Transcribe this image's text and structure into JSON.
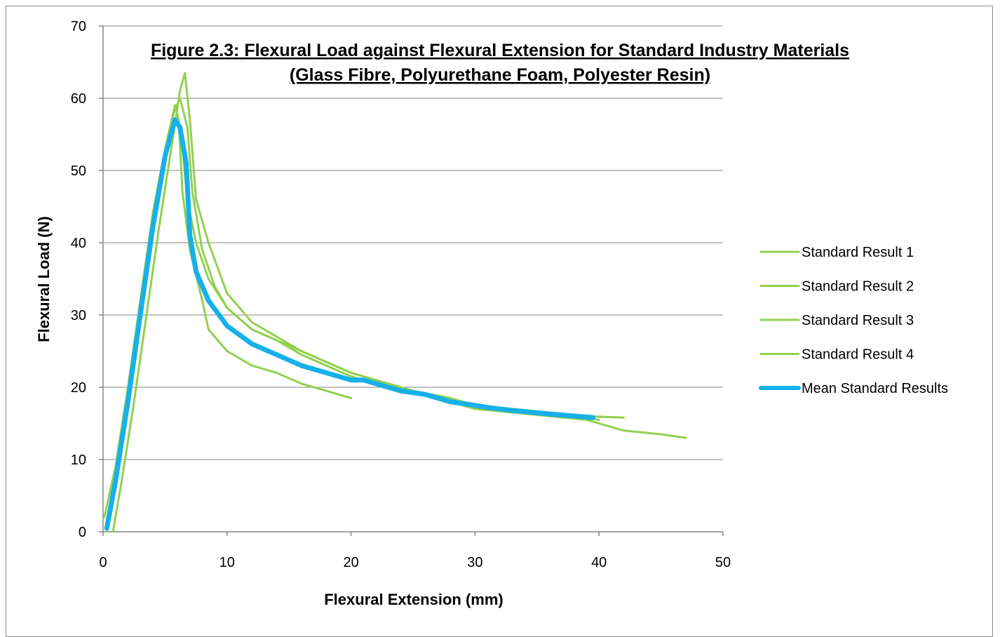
{
  "chart_data": {
    "type": "line",
    "title_line1": "Figure 2.3: Flexural Load against Flexural Extension for Standard Industry Materials",
    "title_line2": "(Glass Fibre, Polyurethane Foam, Polyester Resin)",
    "xlabel": "Flexural Extension (mm)",
    "ylabel": "Flexural Load (N)",
    "xlim": [
      0,
      50
    ],
    "ylim": [
      0,
      70
    ],
    "x_ticks": [
      "0",
      "10",
      "20",
      "30",
      "40",
      "50"
    ],
    "y_ticks": [
      "0",
      "10",
      "20",
      "30",
      "40",
      "50",
      "60",
      "70"
    ],
    "grid": "horizontal",
    "legend_position": "right",
    "series": [
      {
        "name": "Standard Result 1",
        "color": "#92d050",
        "x": [
          0.3,
          1,
          2,
          3,
          4,
          5,
          5.7,
          6.2,
          6.8,
          7.2,
          8,
          9,
          10,
          12,
          14,
          16,
          18,
          20,
          22,
          25,
          28,
          30,
          33,
          36,
          39,
          42
        ],
        "y": [
          0,
          7,
          17,
          29,
          41,
          52,
          58,
          60,
          56,
          47,
          39,
          34,
          31,
          28,
          26.5,
          25,
          23.5,
          22,
          21,
          19.5,
          18.5,
          17.5,
          17,
          16.5,
          16,
          15.8
        ]
      },
      {
        "name": "Standard Result 2",
        "color": "#92d050",
        "x": [
          0.8,
          1.5,
          2.5,
          3.5,
          4.5,
          5.5,
          6.2,
          6.6,
          7,
          7.5,
          8.5,
          10,
          12,
          14,
          16,
          18,
          20,
          22,
          25,
          28,
          30,
          33,
          36,
          39,
          42,
          45,
          47
        ],
        "y": [
          0,
          7,
          18,
          30,
          42,
          53,
          61,
          63.5,
          57,
          46,
          40,
          33,
          29,
          27,
          25,
          23.5,
          22,
          21,
          19.5,
          18,
          17,
          16.5,
          16,
          15.5,
          14,
          13.5,
          13
        ]
      },
      {
        "name": "Standard Result 3",
        "color": "#92d050",
        "x": [
          0.1,
          1,
          2,
          3,
          4,
          5,
          5.8,
          6.1,
          6.4,
          7,
          8,
          8.5,
          10,
          12,
          14,
          16,
          18,
          20
        ],
        "y": [
          2,
          9,
          20,
          32,
          44,
          53,
          59,
          57,
          47,
          39,
          32,
          28,
          25,
          23,
          22,
          20.5,
          19.5,
          18.5
        ]
      },
      {
        "name": "Standard Result 4",
        "color": "#92d050",
        "x": [
          0.2,
          1,
          2,
          3,
          4,
          5,
          5.8,
          6.3,
          6.8,
          7.5,
          8.5,
          10,
          12,
          14,
          16,
          18,
          20,
          22,
          25,
          28,
          30,
          32,
          35,
          38,
          40
        ],
        "y": [
          0.5,
          7,
          18,
          30,
          42,
          52,
          57,
          55,
          46,
          40,
          35,
          31,
          28,
          26.5,
          24.5,
          23,
          21.5,
          20.5,
          19.5,
          18.5,
          17.5,
          17,
          16.5,
          16,
          15.5
        ]
      },
      {
        "name": "Mean Standard Results",
        "color": "#17b0ea",
        "x": [
          0.3,
          1,
          2,
          3,
          4,
          5,
          5.8,
          6.2,
          6.7,
          7,
          7.5,
          8.5,
          10,
          12,
          14,
          16,
          18,
          20,
          21,
          22,
          24,
          26,
          28,
          30,
          31,
          33,
          36,
          39.5
        ],
        "y": [
          0.5,
          7,
          18,
          30,
          42,
          52,
          57,
          56,
          51,
          41,
          36,
          32,
          28.5,
          26,
          24.5,
          23,
          22,
          21,
          21,
          20.5,
          19.5,
          19,
          18,
          17.5,
          17.2,
          16.8,
          16.3,
          15.8
        ]
      }
    ]
  }
}
